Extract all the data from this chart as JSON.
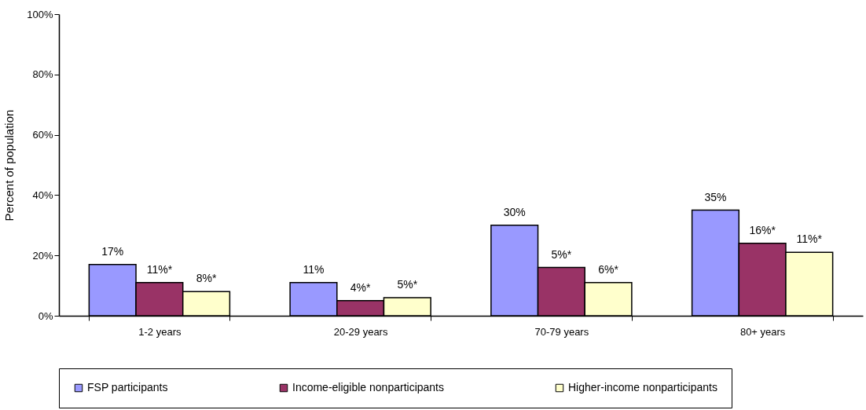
{
  "chart_data": {
    "type": "bar",
    "ylabel": "Percent of population",
    "categories": [
      "1-2 years",
      "20-29 years",
      "70-79 years",
      "80+ years"
    ],
    "series": [
      {
        "name": "FSP participants",
        "color": "#9999ff",
        "values": [
          17,
          11,
          30,
          35
        ],
        "value_labels": [
          "17%",
          "11%",
          "30%",
          "35%"
        ]
      },
      {
        "name": "Income-eligible nonparticipants",
        "color": "#993366",
        "values": [
          11,
          5,
          16,
          24
        ]
      },
      {
        "name": "Higher-income nonparticipants",
        "color": "#ffffcc",
        "values": [
          8,
          6,
          11,
          21
        ]
      }
    ],
    "annotations": [
      "11%*",
      "4%*",
      "5%*",
      "16%*",
      "8%*",
      "5%*",
      "6%*",
      "11%*"
    ],
    "ylim": [
      0,
      100
    ],
    "yticks": [
      {
        "value": 0,
        "label": "0%"
      },
      {
        "value": 20,
        "label": "20%"
      },
      {
        "value": 40,
        "label": "40%"
      },
      {
        "value": 60,
        "label": "60%"
      },
      {
        "value": 80,
        "label": "80%"
      },
      {
        "value": 100,
        "label": "100%"
      }
    ],
    "grid": false,
    "legend": "bottom"
  }
}
